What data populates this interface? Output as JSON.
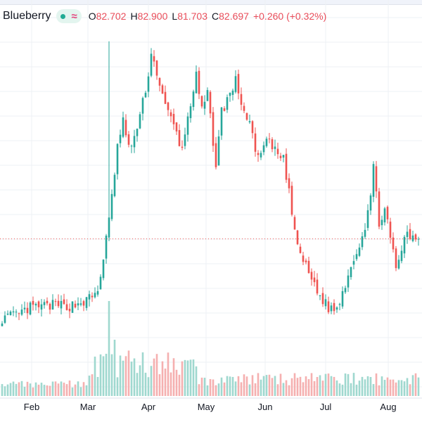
{
  "legend": {
    "symbol": "Blueberry",
    "approx_icon": "≈",
    "open_label": "O",
    "open": "82.702",
    "high_label": "H",
    "high": "82.900",
    "low_label": "L",
    "low": "81.703",
    "close_label": "C",
    "close": "82.697",
    "change": "+0.260 (+0.32%)"
  },
  "colors": {
    "up": "#26a69a",
    "down": "#ef5350",
    "up_vol": "#9fd8cf",
    "down_vol": "#f5b0b0",
    "price_line": "#ef5350"
  },
  "chart_data": {
    "type": "candlestick",
    "xticks": [
      "Feb",
      "Mar",
      "Apr",
      "May",
      "Jun",
      "Jul",
      "Aug"
    ],
    "grid": true,
    "last_price_line": true,
    "anchors": [
      {
        "i": 0,
        "c": 30
      },
      {
        "i": 6,
        "c": 34
      },
      {
        "i": 10,
        "c": 42
      },
      {
        "i": 18,
        "c": 45
      },
      {
        "i": 24,
        "c": 44
      },
      {
        "i": 30,
        "c": 50
      },
      {
        "i": 34,
        "c": 60
      },
      {
        "i": 38,
        "c": 140
      },
      {
        "i": 41,
        "c": 225
      },
      {
        "i": 43,
        "c": 255
      },
      {
        "i": 45,
        "c": 222
      },
      {
        "i": 48,
        "c": 245
      },
      {
        "i": 51,
        "c": 290
      },
      {
        "i": 53,
        "c": 330
      },
      {
        "i": 55,
        "c": 310
      },
      {
        "i": 58,
        "c": 270
      },
      {
        "i": 61,
        "c": 250
      },
      {
        "i": 64,
        "c": 220
      },
      {
        "i": 66,
        "c": 260
      },
      {
        "i": 69,
        "c": 305
      },
      {
        "i": 71,
        "c": 265
      },
      {
        "i": 73,
        "c": 285
      },
      {
        "i": 76,
        "c": 205
      },
      {
        "i": 78,
        "c": 265
      },
      {
        "i": 81,
        "c": 285
      },
      {
        "i": 83,
        "c": 300
      },
      {
        "i": 86,
        "c": 265
      },
      {
        "i": 89,
        "c": 240
      },
      {
        "i": 91,
        "c": 210
      },
      {
        "i": 94,
        "c": 232
      },
      {
        "i": 97,
        "c": 220
      },
      {
        "i": 100,
        "c": 210
      },
      {
        "i": 102,
        "c": 175
      },
      {
        "i": 104,
        "c": 125
      },
      {
        "i": 107,
        "c": 95
      },
      {
        "i": 110,
        "c": 75
      },
      {
        "i": 113,
        "c": 55
      },
      {
        "i": 116,
        "c": 42
      },
      {
        "i": 119,
        "c": 40
      },
      {
        "i": 121,
        "c": 60
      },
      {
        "i": 124,
        "c": 90
      },
      {
        "i": 127,
        "c": 115
      },
      {
        "i": 129,
        "c": 135
      },
      {
        "i": 131,
        "c": 170
      },
      {
        "i": 132,
        "c": 200
      },
      {
        "i": 134,
        "c": 140
      },
      {
        "i": 136,
        "c": 155
      },
      {
        "i": 138,
        "c": 120
      },
      {
        "i": 140,
        "c": 85
      },
      {
        "i": 142,
        "c": 110
      },
      {
        "i": 144,
        "c": 125
      },
      {
        "i": 146,
        "c": 120
      },
      {
        "i": 148,
        "c": 123
      }
    ]
  }
}
